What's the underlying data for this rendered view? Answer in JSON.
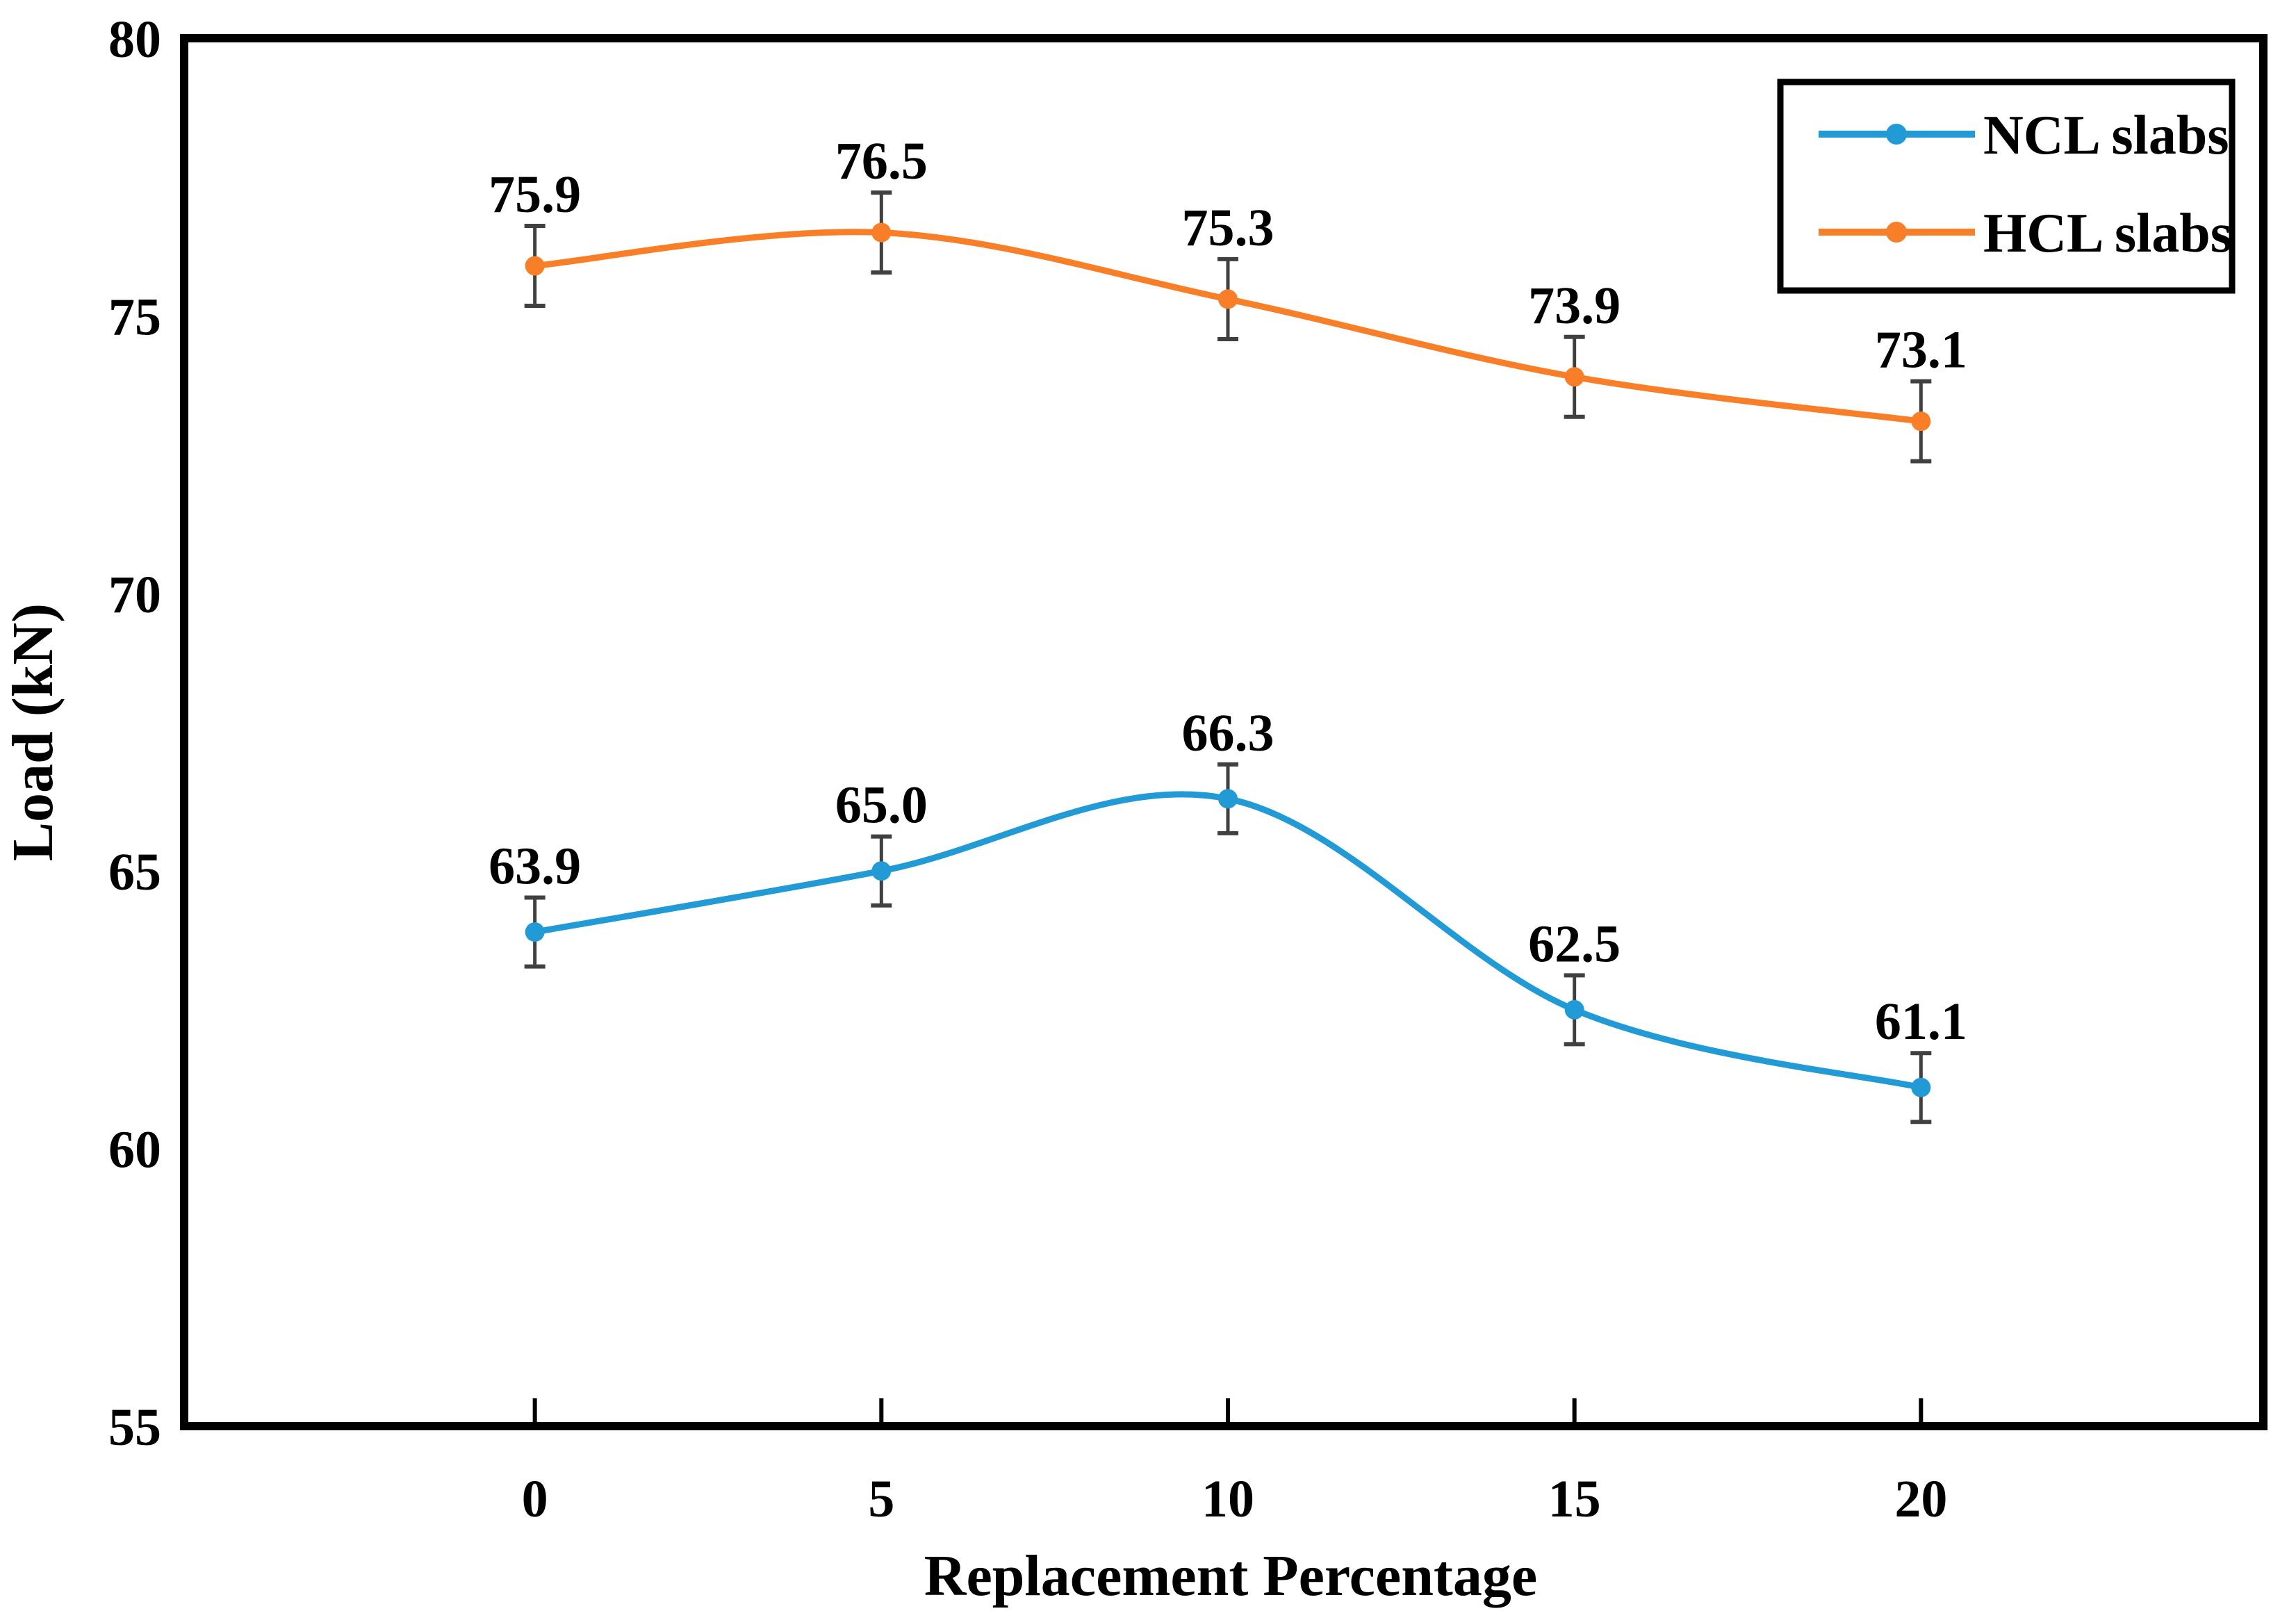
{
  "figure": {
    "background": "#ffffff",
    "border_color": "#000000"
  },
  "chart_data": {
    "type": "line",
    "title": "",
    "xlabel": "Replacement Percentage",
    "ylabel": "Load (kN)",
    "x": [
      0,
      5,
      10,
      15,
      20
    ],
    "x_tick_labels": [
      "0",
      "5",
      "10",
      "15",
      "20"
    ],
    "y_ticks": [
      55,
      60,
      65,
      70,
      75,
      80
    ],
    "y_tick_labels": [
      "55",
      "60",
      "65",
      "70",
      "75",
      "80"
    ],
    "xlim": [
      -5.06,
      24.94
    ],
    "ylim": [
      55,
      80
    ],
    "grid": false,
    "legend_position": "top-right",
    "error_bar_color": "#404040",
    "series": [
      {
        "name": "NCL slabs",
        "color": "#229AD6",
        "values": [
          63.9,
          65.0,
          66.3,
          62.5,
          61.1
        ],
        "labels": [
          "63.9",
          "65.0",
          "66.3",
          "62.5",
          "61.1"
        ],
        "error_bar": 0.62
      },
      {
        "name": "HCL slabs",
        "color": "#F87E27",
        "values": [
          75.9,
          76.5,
          75.3,
          73.9,
          73.1
        ],
        "labels": [
          "75.9",
          "76.5",
          "75.3",
          "73.9",
          "73.1"
        ],
        "error_bar": 0.72
      }
    ]
  }
}
